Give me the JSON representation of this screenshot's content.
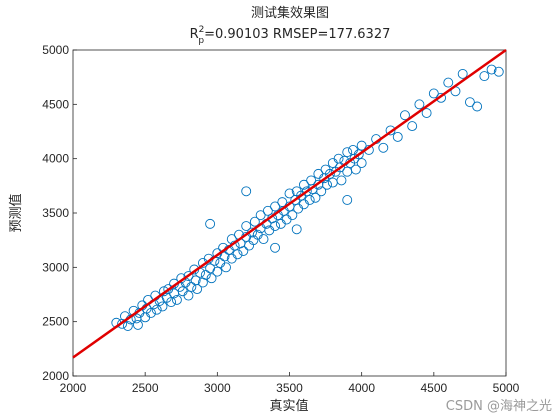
{
  "chart_data": {
    "type": "scatter",
    "title": "测试集效果图",
    "subtitle": {
      "r_prefix": "R",
      "r_sup": "2",
      "r_sub": "p",
      "rest": "=0.90103  RMSEP=177.6327"
    },
    "xlabel": "真实值",
    "ylabel": "预测值",
    "xlim": [
      2000,
      5000
    ],
    "ylim": [
      2000,
      5000
    ],
    "xticks": [
      2000,
      2500,
      3000,
      3500,
      4000,
      4500,
      5000
    ],
    "yticks": [
      2000,
      2500,
      3000,
      3500,
      4000,
      4500,
      5000
    ],
    "grid": false,
    "marker_color": "#0072BD",
    "line_color": "#E00000",
    "fit_line": {
      "x": [
        2000,
        5000
      ],
      "y": [
        2170,
        5040
      ]
    },
    "points": [
      [
        2300,
        2490
      ],
      [
        2340,
        2480
      ],
      [
        2360,
        2550
      ],
      [
        2380,
        2460
      ],
      [
        2400,
        2520
      ],
      [
        2420,
        2600
      ],
      [
        2440,
        2530
      ],
      [
        2450,
        2470
      ],
      [
        2460,
        2580
      ],
      [
        2480,
        2650
      ],
      [
        2500,
        2540
      ],
      [
        2510,
        2620
      ],
      [
        2520,
        2700
      ],
      [
        2540,
        2580
      ],
      [
        2560,
        2660
      ],
      [
        2570,
        2740
      ],
      [
        2580,
        2610
      ],
      [
        2600,
        2690
      ],
      [
        2620,
        2640
      ],
      [
        2630,
        2780
      ],
      [
        2650,
        2720
      ],
      [
        2660,
        2800
      ],
      [
        2680,
        2680
      ],
      [
        2700,
        2760
      ],
      [
        2700,
        2850
      ],
      [
        2720,
        2700
      ],
      [
        2740,
        2820
      ],
      [
        2750,
        2900
      ],
      [
        2760,
        2780
      ],
      [
        2780,
        2860
      ],
      [
        2800,
        2920
      ],
      [
        2800,
        2740
      ],
      [
        2820,
        2820
      ],
      [
        2840,
        2980
      ],
      [
        2850,
        2880
      ],
      [
        2860,
        2800
      ],
      [
        2880,
        2950
      ],
      [
        2900,
        3040
      ],
      [
        2900,
        2860
      ],
      [
        2920,
        2930
      ],
      [
        2940,
        3080
      ],
      [
        2950,
        2990
      ],
      [
        2960,
        2900
      ],
      [
        2980,
        3060
      ],
      [
        3000,
        3130
      ],
      [
        3000,
        2960
      ],
      [
        3020,
        3040
      ],
      [
        3040,
        3180
      ],
      [
        3050,
        3100
      ],
      [
        3060,
        3000
      ],
      [
        3080,
        3160
      ],
      [
        3100,
        3260
      ],
      [
        3100,
        3080
      ],
      [
        3120,
        3200
      ],
      [
        3140,
        3120
      ],
      [
        3150,
        3300
      ],
      [
        3160,
        3220
      ],
      [
        3180,
        3150
      ],
      [
        3200,
        3280
      ],
      [
        3200,
        3380
      ],
      [
        3220,
        3200
      ],
      [
        3240,
        3320
      ],
      [
        3250,
        3250
      ],
      [
        3260,
        3420
      ],
      [
        3280,
        3300
      ],
      [
        3300,
        3360
      ],
      [
        3300,
        3480
      ],
      [
        3320,
        3260
      ],
      [
        3340,
        3400
      ],
      [
        3350,
        3520
      ],
      [
        3360,
        3340
      ],
      [
        3380,
        3450
      ],
      [
        3400,
        3380
      ],
      [
        3400,
        3560
      ],
      [
        3420,
        3480
      ],
      [
        3440,
        3400
      ],
      [
        3450,
        3600
      ],
      [
        3460,
        3520
      ],
      [
        3480,
        3440
      ],
      [
        3500,
        3560
      ],
      [
        3500,
        3680
      ],
      [
        3520,
        3480
      ],
      [
        3540,
        3620
      ],
      [
        3550,
        3700
      ],
      [
        3560,
        3540
      ],
      [
        3580,
        3660
      ],
      [
        3600,
        3580
      ],
      [
        3600,
        3760
      ],
      [
        3620,
        3700
      ],
      [
        3640,
        3620
      ],
      [
        3650,
        3800
      ],
      [
        3660,
        3720
      ],
      [
        3680,
        3640
      ],
      [
        3700,
        3760
      ],
      [
        3700,
        3860
      ],
      [
        3720,
        3700
      ],
      [
        3740,
        3820
      ],
      [
        3750,
        3900
      ],
      [
        3760,
        3760
      ],
      [
        3780,
        3860
      ],
      [
        3800,
        3960
      ],
      [
        3800,
        3780
      ],
      [
        3820,
        3880
      ],
      [
        3840,
        4000
      ],
      [
        3850,
        3920
      ],
      [
        3860,
        3800
      ],
      [
        3880,
        3980
      ],
      [
        3900,
        4060
      ],
      [
        3900,
        3880
      ],
      [
        3920,
        3960
      ],
      [
        3940,
        4080
      ],
      [
        3950,
        4000
      ],
      [
        3960,
        3900
      ],
      [
        3980,
        4040
      ],
      [
        4000,
        4120
      ],
      [
        4000,
        3960
      ],
      [
        4050,
        4080
      ],
      [
        4100,
        4180
      ],
      [
        4150,
        4100
      ],
      [
        4200,
        4260
      ],
      [
        4250,
        4200
      ],
      [
        4300,
        4400
      ],
      [
        4350,
        4300
      ],
      [
        4400,
        4500
      ],
      [
        4450,
        4420
      ],
      [
        4500,
        4600
      ],
      [
        4550,
        4560
      ],
      [
        4600,
        4700
      ],
      [
        4650,
        4620
      ],
      [
        4700,
        4780
      ],
      [
        4750,
        4520
      ],
      [
        4800,
        4480
      ],
      [
        4850,
        4760
      ],
      [
        4900,
        4820
      ],
      [
        4950,
        4800
      ],
      [
        3200,
        3700
      ],
      [
        3400,
        3180
      ],
      [
        2950,
        3400
      ],
      [
        3550,
        3350
      ],
      [
        3900,
        3620
      ]
    ]
  }
}
